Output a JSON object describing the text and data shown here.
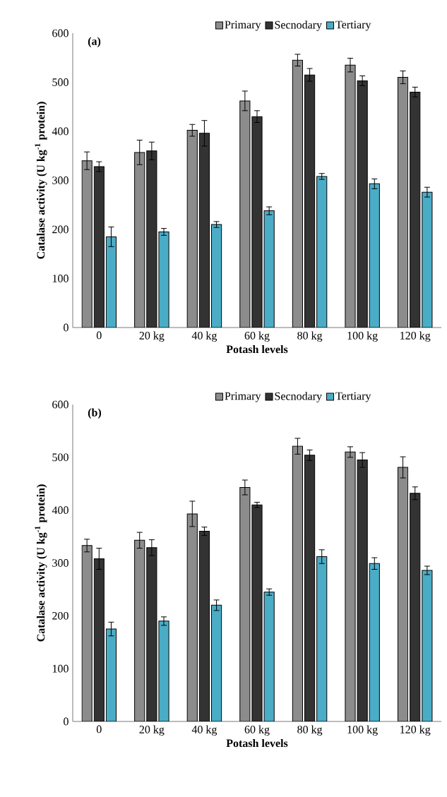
{
  "chart_data": [
    {
      "type": "bar",
      "title": "(a)",
      "xlabel": "Potash levels",
      "ylabel": "Catalase activity (U kg$^{-1}$ protein)",
      "categories": [
        "0",
        "20 kg",
        "40 kg",
        "60 kg",
        "80 kg",
        "100 kg",
        "120 kg"
      ],
      "series": [
        {
          "name": "Primary",
          "color": "#8c8c8c",
          "values": [
            340,
            357,
            402,
            462,
            545,
            535,
            510
          ],
          "errors": [
            18,
            25,
            12,
            20,
            12,
            14,
            13
          ]
        },
        {
          "name": "Secnodary",
          "color": "#333333",
          "values": [
            328,
            360,
            396,
            430,
            515,
            503,
            480
          ],
          "errors": [
            10,
            18,
            26,
            12,
            13,
            10,
            10
          ]
        },
        {
          "name": "Tertiary",
          "color": "#4bacc6",
          "values": [
            185,
            195,
            210,
            238,
            308,
            293,
            276
          ],
          "errors": [
            20,
            7,
            6,
            8,
            6,
            10,
            10
          ]
        }
      ],
      "ylim": [
        0,
        600
      ],
      "yticks": [
        0,
        100,
        200,
        300,
        400,
        500,
        600
      ],
      "grid": false,
      "legend": "top"
    },
    {
      "type": "bar",
      "title": "(b)",
      "xlabel": "Potash levels",
      "ylabel": "Catalase activity (U kg$^{-1}$ protein)",
      "categories": [
        "0",
        "20 kg",
        "40 kg",
        "60 kg",
        "80 kg",
        "100 kg",
        "120 kg"
      ],
      "series": [
        {
          "name": "Primary",
          "color": "#8c8c8c",
          "values": [
            333,
            343,
            393,
            443,
            521,
            510,
            481
          ],
          "errors": [
            12,
            15,
            24,
            14,
            15,
            10,
            20
          ]
        },
        {
          "name": "Secnodary",
          "color": "#333333",
          "values": [
            308,
            329,
            360,
            410,
            504,
            495,
            432
          ],
          "errors": [
            20,
            15,
            8,
            5,
            10,
            14,
            12
          ]
        },
        {
          "name": "Tertiary",
          "color": "#4bacc6",
          "values": [
            175,
            190,
            220,
            245,
            312,
            299,
            286
          ],
          "errors": [
            13,
            8,
            10,
            6,
            13,
            11,
            8
          ]
        }
      ],
      "ylim": [
        0,
        600
      ],
      "yticks": [
        0,
        100,
        200,
        300,
        400,
        500,
        600
      ],
      "grid": false,
      "legend": "top"
    }
  ]
}
